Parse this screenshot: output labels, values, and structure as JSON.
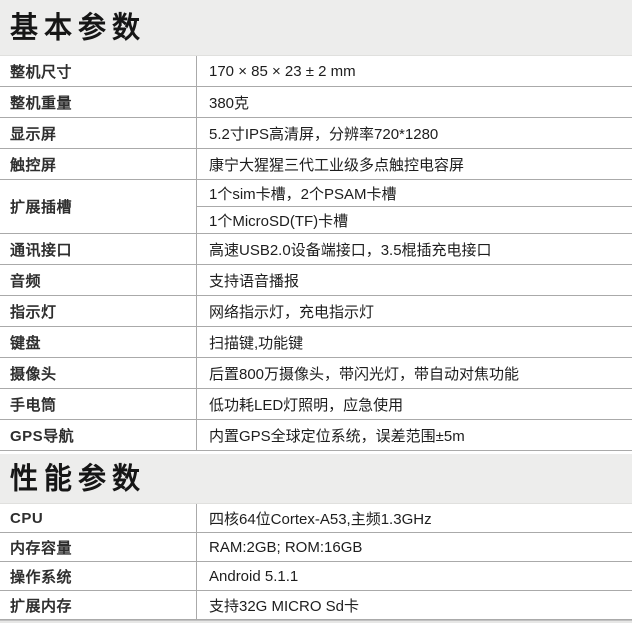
{
  "colors": {
    "band_background": "#ededec",
    "table_border": "#aaaaaa",
    "header_text": "#161616",
    "label_text": "#2e2e2e",
    "value_text": "#1d1d1d"
  },
  "sections": [
    {
      "title": "基本参数",
      "rows": [
        {
          "label": "整机尺寸",
          "values": [
            "170 × 85 × 23 ± 2 mm"
          ]
        },
        {
          "label": "整机重量",
          "values": [
            "380克"
          ]
        },
        {
          "label": "显示屏",
          "values": [
            "5.2寸IPS高清屏，分辨率720*1280"
          ]
        },
        {
          "label": "触控屏",
          "values": [
            "康宁大猩猩三代工业级多点触控电容屏"
          ]
        },
        {
          "label": "扩展插槽",
          "values": [
            "1个sim卡槽，2个PSAM卡槽",
            "1个MicroSD(TF)卡槽"
          ]
        },
        {
          "label": "通讯接口",
          "values": [
            "高速USB2.0设备端接口，3.5棍插充电接口"
          ]
        },
        {
          "label": "音频",
          "values": [
            "支持语音播报"
          ]
        },
        {
          "label": "指示灯",
          "values": [
            "网络指示灯，充电指示灯"
          ]
        },
        {
          "label": "键盘",
          "values": [
            "扫描键,功能键"
          ]
        },
        {
          "label": "摄像头",
          "values": [
            "后置800万摄像头，带闪光灯，带自动对焦功能"
          ]
        },
        {
          "label": "手电筒",
          "values": [
            "低功耗LED灯照明，应急使用"
          ]
        },
        {
          "label": "GPS导航",
          "values": [
            "内置GPS全球定位系统，误差范围±5m"
          ]
        }
      ]
    },
    {
      "title": "性能参数",
      "rows": [
        {
          "label": "CPU",
          "values": [
            "四核64位Cortex-A53,主频1.3GHz"
          ]
        },
        {
          "label": "内存容量",
          "values": [
            "RAM:2GB; ROM:16GB"
          ]
        },
        {
          "label": "操作系统",
          "values": [
            "Android 5.1.1"
          ]
        },
        {
          "label": "扩展内存",
          "values": [
            "支持32G MICRO Sd卡"
          ]
        }
      ]
    }
  ]
}
